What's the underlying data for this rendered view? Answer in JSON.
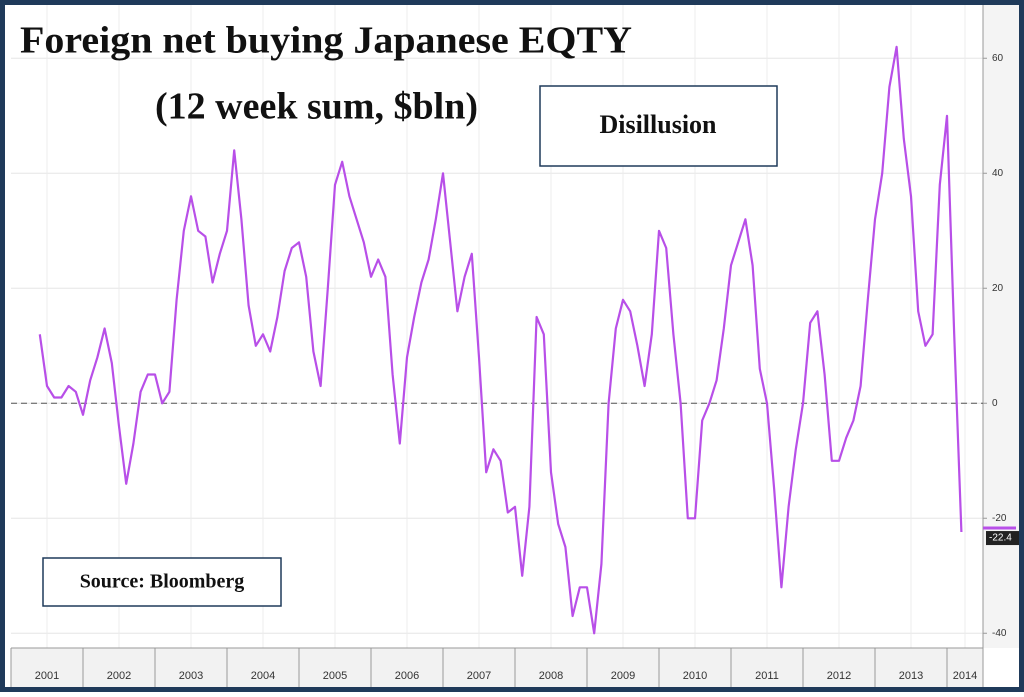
{
  "chart_data": {
    "type": "line",
    "title": "Foreign net buying Japanese EQTY",
    "subtitle": "(12 week sum, $bln)",
    "annotations": [
      "Disillusion",
      "Source: Bloomberg"
    ],
    "color": "#b84fe8",
    "x": [
      2001.4,
      2001.5,
      2001.6,
      2001.7,
      2001.8,
      2001.9,
      2002.0,
      2002.1,
      2002.2,
      2002.3,
      2002.4,
      2002.5,
      2002.6,
      2002.7,
      2002.8,
      2002.9,
      2003.0,
      2003.1,
      2003.2,
      2003.3,
      2003.4,
      2003.5,
      2003.6,
      2003.7,
      2003.8,
      2003.9,
      2004.0,
      2004.1,
      2004.2,
      2004.3,
      2004.4,
      2004.5,
      2004.6,
      2004.7,
      2004.8,
      2004.9,
      2005.0,
      2005.1,
      2005.2,
      2005.3,
      2005.4,
      2005.5,
      2005.6,
      2005.7,
      2005.8,
      2005.9,
      2006.0,
      2006.1,
      2006.2,
      2006.3,
      2006.4,
      2006.5,
      2006.6,
      2006.7,
      2006.8,
      2006.9,
      2007.0,
      2007.1,
      2007.2,
      2007.3,
      2007.4,
      2007.5,
      2007.6,
      2007.7,
      2007.8,
      2007.9,
      2008.0,
      2008.1,
      2008.2,
      2008.3,
      2008.4,
      2008.5,
      2008.6,
      2008.7,
      2008.8,
      2008.9,
      2009.0,
      2009.1,
      2009.2,
      2009.3,
      2009.4,
      2009.5,
      2009.6,
      2009.7,
      2009.8,
      2009.9,
      2010.0,
      2010.1,
      2010.2,
      2010.3,
      2010.4,
      2010.5,
      2010.6,
      2010.7,
      2010.8,
      2010.9,
      2011.0,
      2011.1,
      2011.2,
      2011.3,
      2011.4,
      2011.5,
      2011.6,
      2011.7,
      2011.8,
      2011.9,
      2012.0,
      2012.1,
      2012.2,
      2012.3,
      2012.4,
      2012.5,
      2012.6,
      2012.7,
      2012.8,
      2012.9,
      2013.0,
      2013.1,
      2013.2,
      2013.3,
      2013.4,
      2013.5,
      2013.6,
      2013.7,
      2013.8,
      2013.9,
      2014.0,
      2014.1,
      2014.2
    ],
    "values": [
      12,
      3,
      1,
      1,
      3,
      2,
      -2,
      4,
      8,
      13,
      7,
      -4,
      -14,
      -7,
      2,
      5,
      5,
      0,
      2,
      18,
      30,
      36,
      30,
      29,
      21,
      26,
      30,
      44,
      32,
      17,
      10,
      12,
      9,
      15,
      23,
      27,
      28,
      22,
      9,
      3,
      20,
      38,
      42,
      36,
      32,
      28,
      22,
      25,
      22,
      5,
      -7,
      8,
      15,
      21,
      25,
      32,
      40,
      28,
      16,
      22,
      26,
      8,
      -12,
      -8,
      -10,
      -19,
      -18,
      -30,
      -18,
      15,
      12,
      -12,
      -21,
      -25,
      -37,
      -32,
      -32,
      -40,
      -28,
      0,
      13,
      18,
      16,
      10,
      3,
      12,
      30,
      27,
      12,
      0,
      -20,
      -20,
      -3,
      0,
      4,
      13,
      24,
      28,
      32,
      24,
      6,
      0,
      -15,
      -32,
      -18,
      -8,
      0,
      14,
      16,
      5,
      -10,
      -10,
      -6,
      -3,
      3,
      18,
      32,
      40,
      55,
      62,
      46,
      36,
      16,
      10,
      12,
      38,
      50,
      12,
      -22.4
    ],
    "xlim": [
      2001,
      2014.5
    ],
    "xticks": [
      {
        "value": 2001.5,
        "label": "2001"
      },
      {
        "value": 2002.5,
        "label": "2002"
      },
      {
        "value": 2003.5,
        "label": "2003"
      },
      {
        "value": 2004.5,
        "label": "2004"
      },
      {
        "value": 2005.5,
        "label": "2005"
      },
      {
        "value": 2006.5,
        "label": "2006"
      },
      {
        "value": 2007.5,
        "label": "2007"
      },
      {
        "value": 2008.5,
        "label": "2008"
      },
      {
        "value": 2009.5,
        "label": "2009"
      },
      {
        "value": 2010.5,
        "label": "2010"
      },
      {
        "value": 2011.5,
        "label": "2011"
      },
      {
        "value": 2012.5,
        "label": "2012"
      },
      {
        "value": 2013.5,
        "label": "2013"
      },
      {
        "value": 2014.25,
        "label": "2014"
      }
    ],
    "ylim": [
      -42,
      67
    ],
    "yticks": [
      -40,
      -20,
      0,
      20,
      40,
      60
    ],
    "grid": true
  }
}
